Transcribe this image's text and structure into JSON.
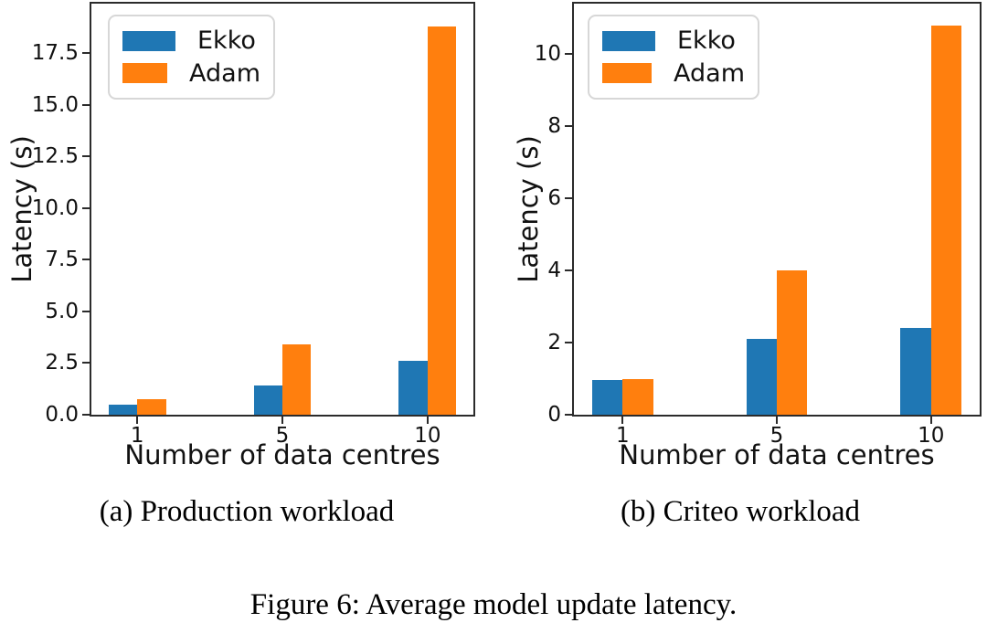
{
  "figure": {
    "caption": "Figure 6: Average model update latency.",
    "subcaptions": [
      "(a) Production workload",
      "(b) Criteo workload"
    ]
  },
  "chart_data": [
    {
      "type": "bar",
      "title": "(a) Production workload",
      "xlabel": "Number of data centres",
      "ylabel": "Latency (s)",
      "categories": [
        "1",
        "5",
        "10"
      ],
      "series": [
        {
          "name": "Ekko",
          "color": "#1f77b4",
          "values": [
            0.5,
            1.4,
            2.6
          ]
        },
        {
          "name": "Adam",
          "color": "#ff7f0e",
          "values": [
            0.75,
            3.4,
            18.8
          ]
        }
      ],
      "ylim": [
        0,
        19.9
      ],
      "yticks": [
        0.0,
        2.5,
        5.0,
        7.5,
        10.0,
        12.5,
        15.0,
        17.5
      ],
      "ytick_labels": [
        "0.0",
        "2.5",
        "5.0",
        "7.5",
        "10.0",
        "12.5",
        "15.0",
        "17.5"
      ],
      "grid": false,
      "legend_position": "upper-left"
    },
    {
      "type": "bar",
      "title": "(b) Criteo workload",
      "xlabel": "Number of data centres",
      "ylabel": "Latency (s)",
      "categories": [
        "1",
        "5",
        "10"
      ],
      "series": [
        {
          "name": "Ekko",
          "color": "#1f77b4",
          "values": [
            0.97,
            2.1,
            2.4
          ]
        },
        {
          "name": "Adam",
          "color": "#ff7f0e",
          "values": [
            1.0,
            4.0,
            10.8
          ]
        }
      ],
      "ylim": [
        0,
        11.4
      ],
      "yticks": [
        0,
        2,
        4,
        6,
        8,
        10
      ],
      "ytick_labels": [
        "0",
        "2",
        "4",
        "6",
        "8",
        "10"
      ],
      "grid": false,
      "legend_position": "upper-left"
    }
  ]
}
